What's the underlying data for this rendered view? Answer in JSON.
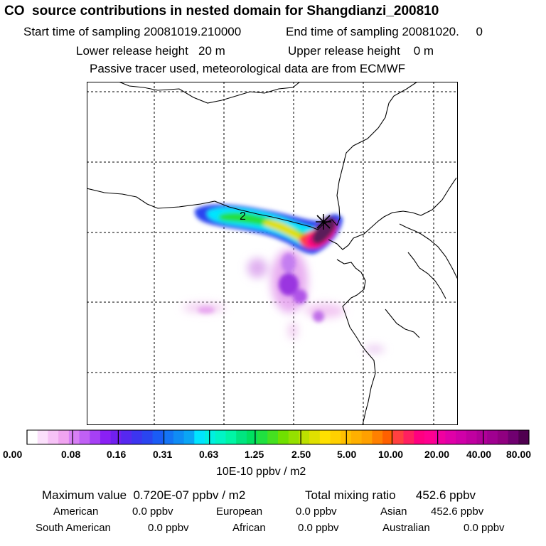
{
  "header": {
    "title": "CO  source contributions in nested domain for Shangdianzi_200810",
    "start_label": "Start time of sampling 20081019.210000",
    "end_label": "End time of sampling 20081020.     0",
    "lower_release": "Lower release height   20 m",
    "upper_release": "Upper release height    0 m",
    "tracer_note": "Passive tracer used, meteorological data are from ECMWF"
  },
  "map": {
    "label_2": "2",
    "station_marker": "x-marker-icon",
    "colors": {
      "coastline": "#000000",
      "grid": "#000000",
      "plume_core": "#5a1a5a"
    }
  },
  "colorbar": {
    "ticks": [
      "0.00",
      "0.08",
      "0.16",
      "0.31",
      "0.63",
      "1.25",
      "2.50",
      "5.00",
      "10.00",
      "20.00",
      "40.00",
      "80.00"
    ],
    "unit": "10E-10 ppbv / m2",
    "colors": [
      "#ffffff",
      "#fbe0fb",
      "#f6c2f6",
      "#f0a4f0",
      "#d77ff5",
      "#c060f5",
      "#a640f5",
      "#8a20f5",
      "#7020f0",
      "#5628f0",
      "#3c35f0",
      "#2a45f0",
      "#1a5cf5",
      "#1474f5",
      "#0f8cf5",
      "#0aa5f5",
      "#00e5ff",
      "#00f0e0",
      "#00f5c5",
      "#00f5a5",
      "#00e580",
      "#00e060",
      "#20e040",
      "#45e020",
      "#70e000",
      "#95e000",
      "#bde000",
      "#e0e000",
      "#ffe000",
      "#ffd000",
      "#ffc000",
      "#ffb000",
      "#ffa000",
      "#ff8000",
      "#ff6000",
      "#ff4040",
      "#ff2060",
      "#ff0080",
      "#ff0090",
      "#f000a0",
      "#e000a8",
      "#d000a8",
      "#c000a0",
      "#b00098",
      "#a00090",
      "#900080",
      "#700070",
      "#500050"
    ]
  },
  "summary": {
    "max_value": "Maximum value  0.720E-07 ppbv / m2",
    "total": "Total mixing ratio      452.6 ppbv",
    "american_label": "American",
    "american_value": "0.0 ppbv",
    "european_label": "European",
    "european_value": "0.0 ppbv",
    "asian_label": "Asian",
    "asian_value": "452.6 ppbv",
    "south_american_label": "South American",
    "south_american_value": "0.0 ppbv",
    "african_label": "African",
    "african_value": "0.0 ppbv",
    "australian_label": "Australian",
    "australian_value": "0.0 ppbv"
  }
}
